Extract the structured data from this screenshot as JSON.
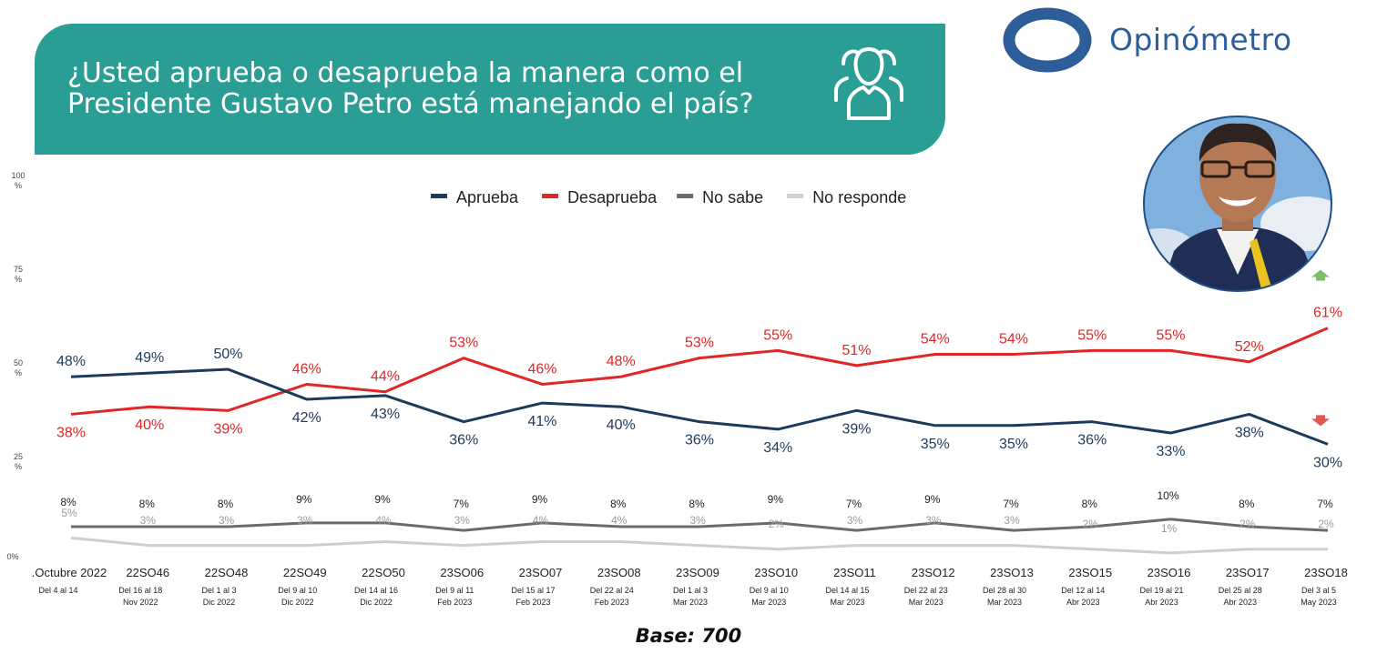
{
  "header": {
    "question_line1": "¿Usted aprueba o desaprueba la manera como el",
    "question_line2": "Presidente Gustavo Petro está manejando el país?",
    "brand": "Opinómetro",
    "icon": "people-group-icon"
  },
  "footer": {
    "base": "Base: 700"
  },
  "chart_data": {
    "type": "line",
    "title": "",
    "xlabel": "",
    "ylabel": "",
    "ylim": [
      0,
      100
    ],
    "y_ticks": [
      {
        "value": 0,
        "label": "0%"
      },
      {
        "value": 25,
        "label": "25 %"
      },
      {
        "value": 50,
        "label": "50 %"
      },
      {
        "value": 75,
        "label": "75 %"
      },
      {
        "value": 100,
        "label": "100 %"
      }
    ],
    "categories": [
      ".Octubre 2022",
      "22SO46",
      "22SO48",
      "22SO49",
      "22SO50",
      "23SO06",
      "23SO07",
      "23SO08",
      "23SO09",
      "23SO10",
      "23SO11",
      "23SO12",
      "23SO13",
      "23SO15",
      "23SO16",
      "23SO17",
      "23SO18"
    ],
    "category_dates": [
      [
        "Del 4 al 14",
        ""
      ],
      [
        "Del 16 al 18",
        "Nov 2022"
      ],
      [
        "Del 1 al 3",
        "Dic 2022"
      ],
      [
        "Del 9 al 10",
        "Dic 2022"
      ],
      [
        "Del 14 al 16",
        "Dic 2022"
      ],
      [
        "Del 9 al 11",
        "Feb 2023"
      ],
      [
        "Del 15 al 17",
        "Feb 2023"
      ],
      [
        "Del 22 al 24",
        "Feb 2023"
      ],
      [
        "Del 1 al 3",
        "Mar 2023"
      ],
      [
        "Del 9 al 10",
        "Mar 2023"
      ],
      [
        "Del 14 al 15",
        "Mar 2023"
      ],
      [
        "Del 22 al 23",
        "Mar 2023"
      ],
      [
        "Del 28 al 30",
        "Mar 2023"
      ],
      [
        "Del 12 al 14",
        "Abr 2023"
      ],
      [
        "Del 19 al 21",
        "Abr 2023"
      ],
      [
        "Del 25 al 28",
        "Abr 2023"
      ],
      [
        "Del 3 al 5",
        "May 2023"
      ]
    ],
    "legend_position": "top-center",
    "series": [
      {
        "name": "Aprueba",
        "color": "#1b3a5c",
        "values": [
          48,
          49,
          50,
          42,
          43,
          36,
          41,
          40,
          36,
          34,
          39,
          35,
          35,
          36,
          33,
          38,
          30
        ]
      },
      {
        "name": "Desaprueba",
        "color": "#e02626",
        "values": [
          38,
          40,
          39,
          46,
          44,
          53,
          46,
          48,
          53,
          55,
          51,
          54,
          54,
          55,
          55,
          52,
          61
        ]
      },
      {
        "name": "No sabe",
        "color": "#6b6b6b",
        "values": [
          8,
          8,
          8,
          9,
          9,
          7,
          9,
          8,
          8,
          9,
          7,
          9,
          7,
          8,
          10,
          8,
          7
        ]
      },
      {
        "name": "No responde",
        "color": "#cfcfcf",
        "values": [
          5,
          3,
          3,
          3,
          4,
          3,
          4,
          4,
          3,
          2,
          3,
          3,
          3,
          2,
          1,
          2,
          2
        ]
      }
    ],
    "trend_markers": [
      {
        "series": "Desaprueba",
        "direction": "up",
        "color": "#7cbf6a"
      },
      {
        "series": "Aprueba",
        "direction": "down",
        "color": "#e25555"
      }
    ]
  }
}
